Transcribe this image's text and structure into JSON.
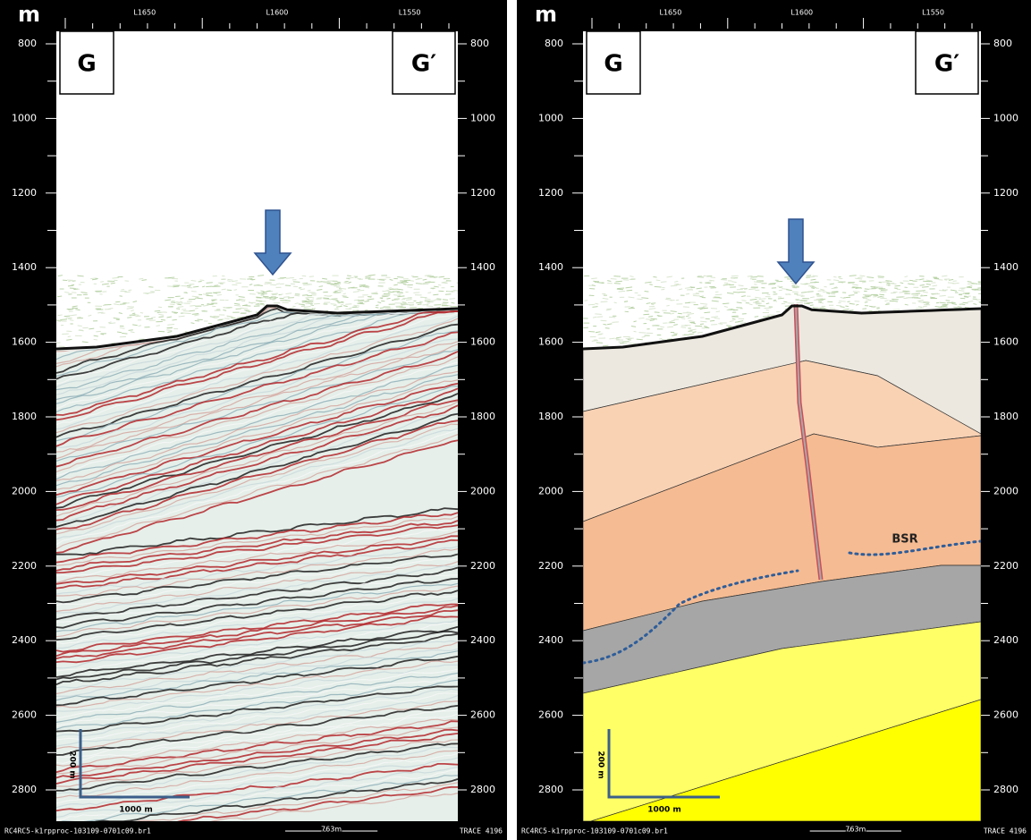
{
  "panels": [
    {
      "unit": "m",
      "top_labels": [
        "L1650",
        "L1600",
        "L1550"
      ],
      "depth_labels": [
        800,
        1000,
        1200,
        1400,
        1600,
        1800,
        2000,
        2200,
        2400,
        2600,
        2800
      ],
      "left_marker": "G",
      "right_marker": "G′",
      "scale_vertical": "200 m",
      "scale_horizontal": "1000 m",
      "footer_left": "RC4RC5-k1rpproc-103109-0701c09.br1",
      "footer_mid": "763m",
      "footer_right": "TRACE 4196"
    },
    {
      "unit": "m",
      "top_labels": [
        "L1650",
        "L1600",
        "L1550"
      ],
      "depth_labels": [
        800,
        1000,
        1200,
        1400,
        1600,
        1800,
        2000,
        2200,
        2400,
        2600,
        2800
      ],
      "left_marker": "G",
      "right_marker": "G′",
      "scale_vertical": "200 m",
      "scale_horizontal": "1000 m",
      "footer_left": "RC4RC5-k1rpproc-103109-0701c09.br1",
      "footer_mid": "763m",
      "footer_right": "TRACE 4196",
      "annotation": "BSR"
    }
  ]
}
